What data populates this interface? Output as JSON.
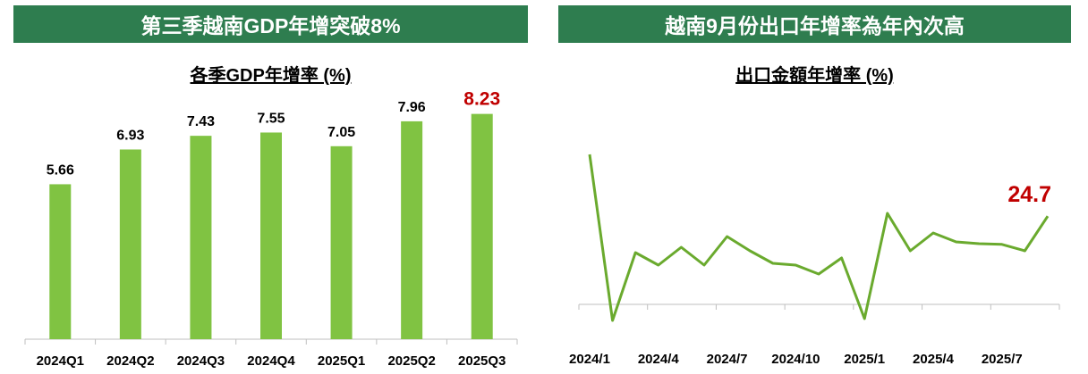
{
  "left_panel": {
    "header": "第三季越南GDP年增突破8%",
    "subtitle": "各季GDP年增率 (%)"
  },
  "right_panel": {
    "header": "越南9月份出口年增率為年內次高",
    "subtitle": "出口金額年增率 (%)"
  },
  "colors": {
    "header_bg": "#2e7d4f",
    "bar": "#80c342",
    "line": "#6aaa2e",
    "highlight": "#c00000"
  },
  "chart_data": [
    {
      "type": "bar",
      "categories": [
        "2024Q1",
        "2024Q2",
        "2024Q3",
        "2024Q4",
        "2025Q1",
        "2025Q2",
        "2025Q3"
      ],
      "values": [
        5.66,
        6.93,
        7.43,
        7.55,
        7.05,
        7.96,
        8.23
      ],
      "value_labels": [
        "5.66",
        "6.93",
        "7.43",
        "7.55",
        "7.05",
        "7.96",
        "8.23"
      ],
      "highlight_index": 6,
      "ylim": [
        0,
        9
      ]
    },
    {
      "type": "line",
      "x": [
        "2024/1",
        "2024/2",
        "2024/3",
        "2024/4",
        "2024/5",
        "2024/6",
        "2024/7",
        "2024/8",
        "2024/9",
        "2024/10",
        "2024/11",
        "2024/12",
        "2025/1",
        "2025/2",
        "2025/3",
        "2025/4",
        "2025/5",
        "2025/6",
        "2025/7",
        "2025/8",
        "2025/9"
      ],
      "y": [
        42,
        -4.5,
        14.5,
        11,
        16,
        11,
        19,
        15,
        11.5,
        11,
        8.5,
        13,
        -4,
        25.5,
        15,
        20,
        17.5,
        17,
        16.8,
        15,
        24.7
      ],
      "xticks": [
        "2024/1",
        "2024/4",
        "2024/7",
        "2024/10",
        "2025/1",
        "2025/4",
        "2025/7"
      ],
      "xtick_indices": [
        0,
        3,
        6,
        9,
        12,
        15,
        18
      ],
      "end_label": "24.7",
      "ylim": [
        -10,
        50
      ]
    }
  ]
}
